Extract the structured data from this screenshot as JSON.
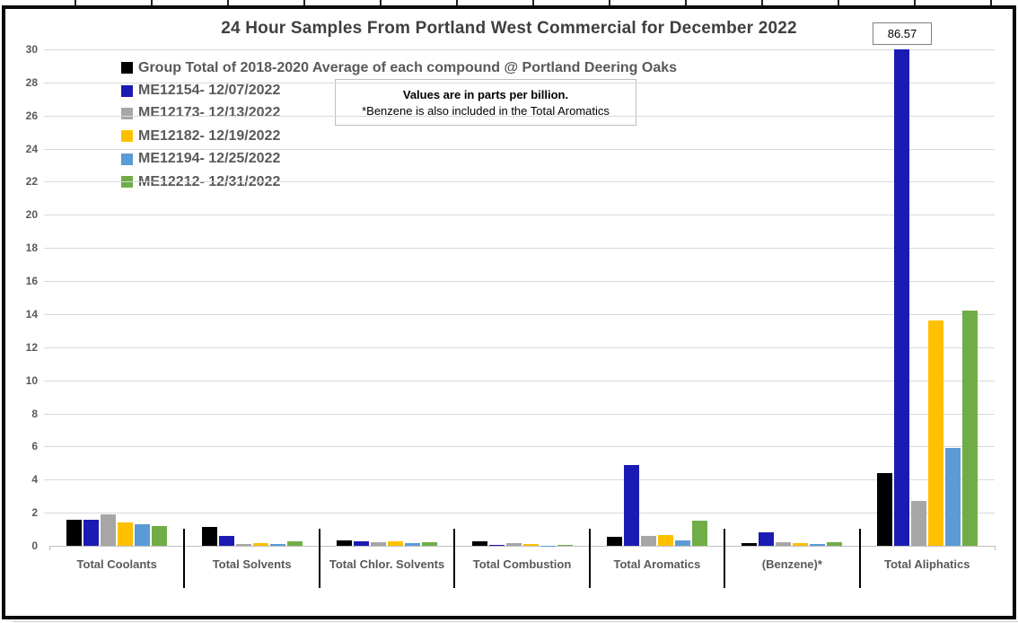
{
  "title": "24 Hour Samples From Portland West Commercial for December 2022",
  "note": {
    "line1": "Values are in parts per billion.",
    "line2": "*Benzene is also included in the Total Aromatics"
  },
  "callout": {
    "value": "86.57"
  },
  "colors": {
    "title_text": "#3f3f3f",
    "axis_text": "#595959",
    "gridline": "#d9d9d9",
    "axis_line": "#bfbfbf",
    "border": "#0a0a0a"
  },
  "chart_data": {
    "type": "bar",
    "title": "24 Hour Samples From Portland West Commercial for December 2022",
    "units": "parts per billion",
    "categories": [
      "Total Coolants",
      "Total Solvents",
      "Total Chlor. Solvents",
      "Total Combustion",
      "Total Aromatics",
      "(Benzene)*",
      "Total Aliphatics"
    ],
    "series": [
      {
        "name": "Group Total of 2018-2020 Average of each compound @ Portland Deering Oaks",
        "color": "#000000",
        "values": [
          1.55,
          1.15,
          0.35,
          0.28,
          0.55,
          0.18,
          4.4
        ]
      },
      {
        "name": "ME12154- 12/07/2022",
        "color": "#1b1bb3",
        "values": [
          1.6,
          0.6,
          0.25,
          0.08,
          4.9,
          0.82,
          86.57
        ]
      },
      {
        "name": "ME12173- 12/13/2022",
        "color": "#a6a6a6",
        "values": [
          1.9,
          0.1,
          0.22,
          0.15,
          0.6,
          0.2,
          2.7
        ]
      },
      {
        "name": "ME12182- 12/19/2022",
        "color": "#ffc000",
        "values": [
          1.4,
          0.15,
          0.25,
          0.1,
          0.65,
          0.17,
          13.6
        ]
      },
      {
        "name": "ME12194- 12/25/2022",
        "color": "#5b9bd5",
        "values": [
          1.3,
          0.1,
          0.18,
          0.02,
          0.35,
          0.12,
          5.9
        ]
      },
      {
        "name": "ME12212- 12/31/2022",
        "color": "#70ad47",
        "values": [
          1.2,
          0.3,
          0.22,
          0.08,
          1.5,
          0.22,
          14.2
        ]
      }
    ],
    "ylim": [
      0,
      30
    ],
    "ytick_step": 2,
    "grid": true,
    "legend_position": "top-left",
    "clipped_bar": {
      "series": "ME12154- 12/07/2022",
      "category": "Total Aliphatics",
      "value": 86.57,
      "label": "86.57"
    }
  }
}
